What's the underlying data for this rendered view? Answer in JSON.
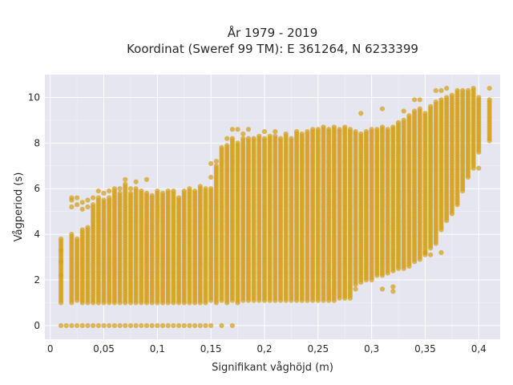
{
  "chart_data": {
    "type": "scatter",
    "title_line1": "År 1979 - 2019",
    "title_line2": "Koordinat (Sweref 99 TM): E 361264, N 6233399",
    "xlabel": "Signifikant våghöjd (m)",
    "ylabel": "Vågperiod (s)",
    "xlim": [
      -0.005,
      0.42
    ],
    "ylim": [
      -0.6,
      11.0
    ],
    "x_ticks": [
      0,
      0.05,
      0.1,
      0.15,
      0.2,
      0.25,
      0.3,
      0.35,
      0.4
    ],
    "x_tick_labels": [
      "0",
      "0,05",
      "0,1",
      "0,15",
      "0,2",
      "0,25",
      "0,3",
      "0,35",
      "0,4"
    ],
    "y_ticks": [
      0,
      2,
      4,
      6,
      8,
      10
    ],
    "y_tick_labels": [
      "0",
      "2",
      "4",
      "6",
      "8",
      "10"
    ],
    "grid": true,
    "marker_color": "#D4A017",
    "plot_bg": "#E5E6EF",
    "columns": [
      {
        "x": 0.01,
        "ymin": 1.0,
        "ymax": 3.8,
        "extra": [
          2.2,
          2.8,
          3.3
        ]
      },
      {
        "x": 0.02,
        "ymin": 1.0,
        "ymax": 4.0,
        "extra": [
          5.2,
          5.5,
          5.6
        ]
      },
      {
        "x": 0.025,
        "ymin": 1.1,
        "ymax": 3.8,
        "extra": [
          5.3,
          5.6
        ]
      },
      {
        "x": 0.03,
        "ymin": 1.0,
        "ymax": 4.2,
        "extra": [
          5.1,
          5.4
        ]
      },
      {
        "x": 0.035,
        "ymin": 1.0,
        "ymax": 4.3,
        "extra": [
          5.2,
          5.5
        ]
      },
      {
        "x": 0.04,
        "ymin": 1.0,
        "ymax": 5.3,
        "extra": [
          5.6
        ]
      },
      {
        "x": 0.045,
        "ymin": 1.0,
        "ymax": 5.6,
        "extra": [
          5.9
        ]
      },
      {
        "x": 0.05,
        "ymin": 1.0,
        "ymax": 5.5,
        "extra": [
          5.8
        ]
      },
      {
        "x": 0.055,
        "ymin": 1.0,
        "ymax": 5.6,
        "extra": [
          5.9
        ]
      },
      {
        "x": 0.06,
        "ymin": 1.0,
        "ymax": 6.0,
        "extra": []
      },
      {
        "x": 0.065,
        "ymin": 1.0,
        "ymax": 5.8,
        "extra": [
          6.0
        ]
      },
      {
        "x": 0.07,
        "ymin": 1.0,
        "ymax": 6.2,
        "extra": [
          6.4
        ]
      },
      {
        "x": 0.075,
        "ymin": 1.0,
        "ymax": 5.8,
        "extra": [
          6.0
        ]
      },
      {
        "x": 0.08,
        "ymin": 1.0,
        "ymax": 6.0,
        "extra": [
          6.3
        ]
      },
      {
        "x": 0.085,
        "ymin": 1.0,
        "ymax": 5.9,
        "extra": []
      },
      {
        "x": 0.09,
        "ymin": 1.0,
        "ymax": 5.8,
        "extra": [
          6.4
        ]
      },
      {
        "x": 0.095,
        "ymin": 1.0,
        "ymax": 5.7,
        "extra": []
      },
      {
        "x": 0.1,
        "ymin": 1.0,
        "ymax": 5.9,
        "extra": []
      },
      {
        "x": 0.105,
        "ymin": 1.0,
        "ymax": 5.8,
        "extra": []
      },
      {
        "x": 0.11,
        "ymin": 1.0,
        "ymax": 5.9,
        "extra": []
      },
      {
        "x": 0.115,
        "ymin": 1.0,
        "ymax": 5.9,
        "extra": []
      },
      {
        "x": 0.12,
        "ymin": 1.0,
        "ymax": 5.6,
        "extra": []
      },
      {
        "x": 0.125,
        "ymin": 1.0,
        "ymax": 5.9,
        "extra": []
      },
      {
        "x": 0.13,
        "ymin": 1.0,
        "ymax": 6.0,
        "extra": []
      },
      {
        "x": 0.135,
        "ymin": 1.0,
        "ymax": 5.9,
        "extra": []
      },
      {
        "x": 0.14,
        "ymin": 1.0,
        "ymax": 6.0,
        "extra": [
          6.1
        ]
      },
      {
        "x": 0.145,
        "ymin": 1.0,
        "ymax": 6.0,
        "extra": []
      },
      {
        "x": 0.15,
        "ymin": 1.1,
        "ymax": 6.0,
        "extra": [
          6.5,
          7.1
        ]
      },
      {
        "x": 0.155,
        "ymin": 1.0,
        "ymax": 7.0,
        "extra": [
          7.2
        ]
      },
      {
        "x": 0.16,
        "ymin": 1.1,
        "ymax": 7.8,
        "extra": []
      },
      {
        "x": 0.165,
        "ymin": 1.0,
        "ymax": 7.9,
        "extra": [
          8.2
        ]
      },
      {
        "x": 0.17,
        "ymin": 1.1,
        "ymax": 8.2,
        "extra": [
          8.6
        ]
      },
      {
        "x": 0.175,
        "ymin": 1.0,
        "ymax": 8.0,
        "extra": [
          8.6
        ]
      },
      {
        "x": 0.18,
        "ymin": 1.1,
        "ymax": 8.2,
        "extra": [
          8.4
        ]
      },
      {
        "x": 0.185,
        "ymin": 1.1,
        "ymax": 8.2,
        "extra": [
          8.6
        ]
      },
      {
        "x": 0.19,
        "ymin": 1.1,
        "ymax": 8.2,
        "extra": []
      },
      {
        "x": 0.195,
        "ymin": 1.1,
        "ymax": 8.3,
        "extra": []
      },
      {
        "x": 0.2,
        "ymin": 1.1,
        "ymax": 8.2,
        "extra": [
          8.5
        ]
      },
      {
        "x": 0.205,
        "ymin": 1.1,
        "ymax": 8.3,
        "extra": []
      },
      {
        "x": 0.21,
        "ymin": 1.1,
        "ymax": 8.3,
        "extra": [
          8.5
        ]
      },
      {
        "x": 0.215,
        "ymin": 1.1,
        "ymax": 8.2,
        "extra": []
      },
      {
        "x": 0.22,
        "ymin": 1.1,
        "ymax": 8.4,
        "extra": []
      },
      {
        "x": 0.225,
        "ymin": 1.1,
        "ymax": 8.2,
        "extra": []
      },
      {
        "x": 0.23,
        "ymin": 1.1,
        "ymax": 8.5,
        "extra": []
      },
      {
        "x": 0.235,
        "ymin": 1.1,
        "ymax": 8.4,
        "extra": []
      },
      {
        "x": 0.24,
        "ymin": 1.1,
        "ymax": 8.5,
        "extra": []
      },
      {
        "x": 0.245,
        "ymin": 1.1,
        "ymax": 8.6,
        "extra": []
      },
      {
        "x": 0.25,
        "ymin": 1.1,
        "ymax": 8.6,
        "extra": []
      },
      {
        "x": 0.255,
        "ymin": 1.1,
        "ymax": 8.7,
        "extra": []
      },
      {
        "x": 0.26,
        "ymin": 1.1,
        "ymax": 8.6,
        "extra": []
      },
      {
        "x": 0.265,
        "ymin": 1.1,
        "ymax": 8.7,
        "extra": []
      },
      {
        "x": 0.27,
        "ymin": 1.2,
        "ymax": 8.6,
        "extra": []
      },
      {
        "x": 0.275,
        "ymin": 1.2,
        "ymax": 8.7,
        "extra": []
      },
      {
        "x": 0.28,
        "ymin": 1.2,
        "ymax": 8.6,
        "extra": []
      },
      {
        "x": 0.285,
        "ymin": 1.8,
        "ymax": 8.5,
        "extra": [
          1.6
        ]
      },
      {
        "x": 0.29,
        "ymin": 1.9,
        "ymax": 8.4,
        "extra": [
          9.3
        ]
      },
      {
        "x": 0.295,
        "ymin": 2.0,
        "ymax": 8.5,
        "extra": []
      },
      {
        "x": 0.3,
        "ymin": 2.0,
        "ymax": 8.6,
        "extra": []
      },
      {
        "x": 0.305,
        "ymin": 2.2,
        "ymax": 8.6,
        "extra": []
      },
      {
        "x": 0.31,
        "ymin": 2.2,
        "ymax": 8.7,
        "extra": [
          9.5,
          1.6
        ]
      },
      {
        "x": 0.315,
        "ymin": 2.3,
        "ymax": 8.6,
        "extra": []
      },
      {
        "x": 0.32,
        "ymin": 2.4,
        "ymax": 8.7,
        "extra": [
          1.5,
          1.7
        ]
      },
      {
        "x": 0.325,
        "ymin": 2.5,
        "ymax": 8.9,
        "extra": []
      },
      {
        "x": 0.33,
        "ymin": 2.5,
        "ymax": 9.0,
        "extra": [
          9.4
        ]
      },
      {
        "x": 0.335,
        "ymin": 2.6,
        "ymax": 9.2,
        "extra": []
      },
      {
        "x": 0.34,
        "ymin": 2.8,
        "ymax": 9.4,
        "extra": [
          9.9
        ]
      },
      {
        "x": 0.345,
        "ymin": 2.9,
        "ymax": 9.5,
        "extra": [
          9.9
        ]
      },
      {
        "x": 0.35,
        "ymin": 3.1,
        "ymax": 9.3,
        "extra": [
          3.2
        ]
      },
      {
        "x": 0.355,
        "ymin": 3.4,
        "ymax": 9.6,
        "extra": [
          3.1
        ]
      },
      {
        "x": 0.36,
        "ymin": 3.6,
        "ymax": 9.8,
        "extra": [
          10.3
        ]
      },
      {
        "x": 0.365,
        "ymin": 4.2,
        "ymax": 9.9,
        "extra": [
          3.2,
          10.3
        ]
      },
      {
        "x": 0.37,
        "ymin": 4.6,
        "ymax": 10.0,
        "extra": [
          10.4
        ]
      },
      {
        "x": 0.375,
        "ymin": 4.9,
        "ymax": 10.1,
        "extra": []
      },
      {
        "x": 0.38,
        "ymin": 5.3,
        "ymax": 10.2,
        "extra": [
          10.3
        ]
      },
      {
        "x": 0.385,
        "ymin": 5.9,
        "ymax": 10.3,
        "extra": []
      },
      {
        "x": 0.39,
        "ymin": 6.5,
        "ymax": 10.3,
        "extra": []
      },
      {
        "x": 0.395,
        "ymin": 6.9,
        "ymax": 10.4,
        "extra": []
      },
      {
        "x": 0.4,
        "ymin": 7.6,
        "ymax": 10.0,
        "extra": [
          6.9
        ]
      },
      {
        "x": 0.41,
        "ymin": 8.1,
        "ymax": 9.9,
        "extra": [
          10.4
        ]
      }
    ],
    "zero_row_x": [
      0.01,
      0.015,
      0.02,
      0.025,
      0.03,
      0.035,
      0.04,
      0.045,
      0.05,
      0.055,
      0.06,
      0.065,
      0.07,
      0.075,
      0.08,
      0.085,
      0.09,
      0.095,
      0.1,
      0.105,
      0.11,
      0.115,
      0.12,
      0.125,
      0.13,
      0.135,
      0.14,
      0.145,
      0.15,
      0.16,
      0.17
    ]
  }
}
